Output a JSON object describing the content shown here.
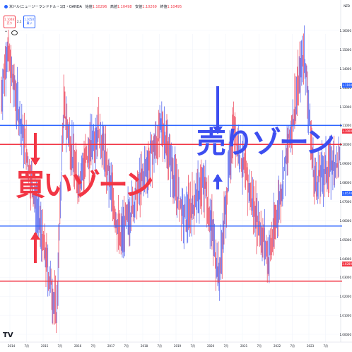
{
  "header": {
    "title": "米ドル/ニュージーランドドル・1日・OANDA",
    "ohlc": [
      {
        "label": "始値",
        "value": "1.10296"
      },
      {
        "label": "高値",
        "value": "1.10498"
      },
      {
        "label": "安値",
        "value": "1.10269"
      },
      {
        "label": "終値",
        "value": "1.10495"
      }
    ],
    "sell_price": "1.10487",
    "sell_label": "売り",
    "spread": "2.1",
    "buy_price": "1.10507",
    "buy_label": "買い",
    "currency": "NZD"
  },
  "price_axis": [
    "1.16000",
    "1.15000",
    "1.14000",
    "1.13000",
    "1.12000",
    "1.11000",
    "1.10000",
    "1.09000",
    "1.08000",
    "1.07000",
    "1.06000",
    "1.05000",
    "1.04000",
    "1.03000",
    "1.02000",
    "1.01000",
    "1.00000"
  ],
  "time_axis": [
    "2014",
    "7月",
    "2015",
    "7月",
    "2016",
    "7月",
    "2017",
    "7月",
    "2018",
    "7月",
    "2019",
    "7月",
    "2020",
    "7月",
    "2021",
    "7月",
    "2022",
    "7月",
    "2023",
    "7月"
  ],
  "levels": [
    {
      "name": "upper-blue-line",
      "price": "1.11000",
      "color": "#2962ff"
    },
    {
      "name": "upper-red-line",
      "price": "1.10000",
      "color": "#f23645"
    },
    {
      "name": "lower-blue-line",
      "price": "1.05700",
      "color": "#2962ff"
    },
    {
      "name": "lower-red-line",
      "price": "1.02800",
      "color": "#f23645"
    }
  ],
  "annotations": {
    "sell_zone": "売りゾーン",
    "buy_zone": "買いゾーン",
    "sell_color": "#3d4ef0",
    "buy_color": "#f23645"
  },
  "logo": "TV"
}
